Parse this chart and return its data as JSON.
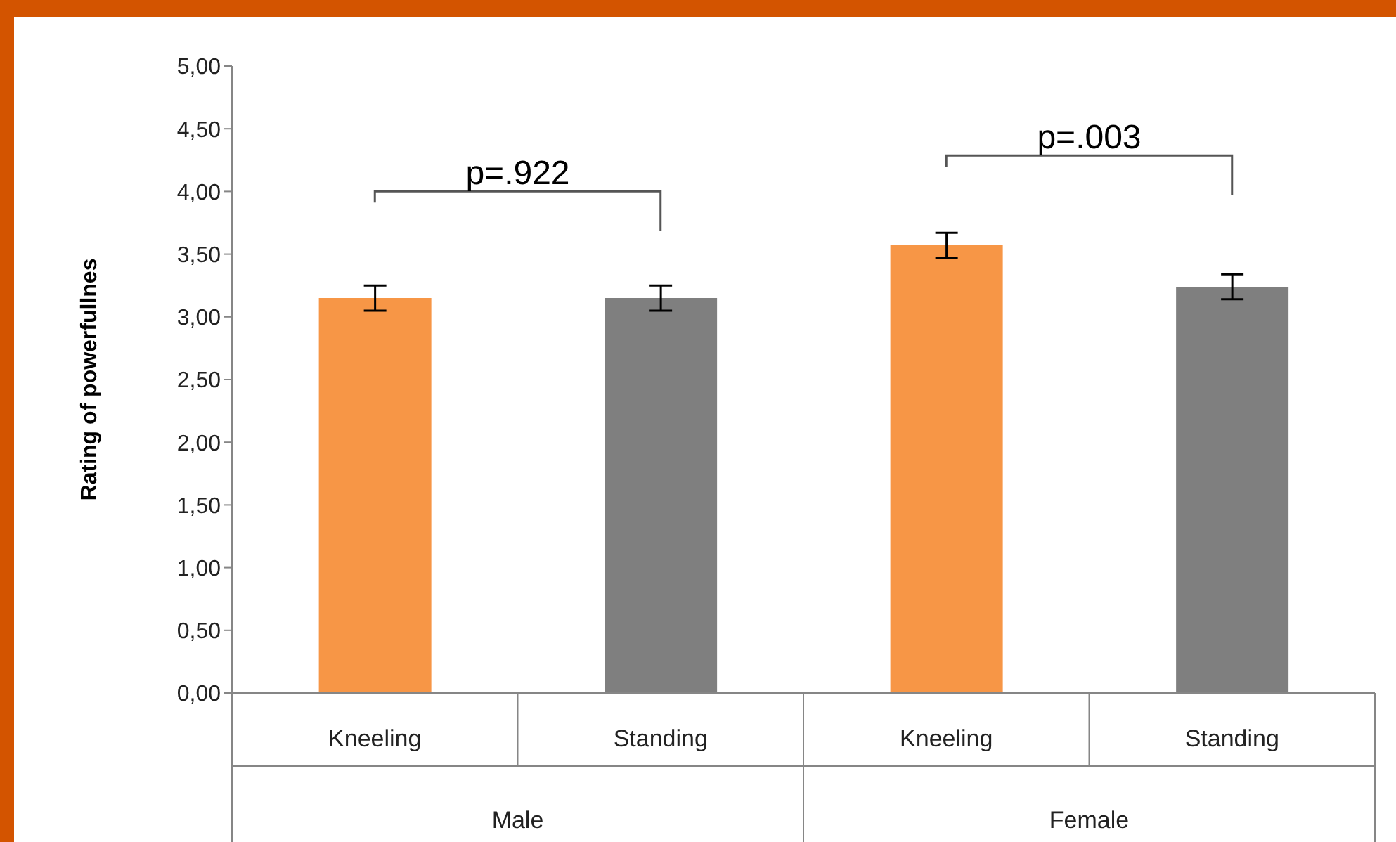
{
  "chart_data": {
    "type": "bar",
    "ylabel": "Rating of powerfullnes",
    "categories": [
      "Kneeling",
      "Standing",
      "Kneeling",
      "Standing"
    ],
    "values": [
      3.15,
      3.15,
      3.57,
      3.24
    ],
    "colors": [
      "#f79646",
      "#7f7f7f",
      "#f79646",
      "#7f7f7f"
    ],
    "errors": [
      0.1,
      0.1,
      0.1,
      0.1
    ],
    "ylim": [
      0,
      5
    ],
    "yticks": [
      {
        "value": 0,
        "label": "0,00"
      },
      {
        "value": 0.5,
        "label": "0,50"
      },
      {
        "value": 1,
        "label": "1,00"
      },
      {
        "value": 1.5,
        "label": "1,50"
      },
      {
        "value": 2,
        "label": "2,00"
      },
      {
        "value": 2.5,
        "label": "2,50"
      },
      {
        "value": 3,
        "label": "3,00"
      },
      {
        "value": 3.5,
        "label": "3,50"
      },
      {
        "value": 4,
        "label": "4,00"
      },
      {
        "value": 4.5,
        "label": "4,50"
      },
      {
        "value": 5,
        "label": "5,00"
      }
    ],
    "annotations": [
      "p=.922",
      "p=.003",
      "Male",
      "Female"
    ],
    "grid": false,
    "legend": false
  }
}
